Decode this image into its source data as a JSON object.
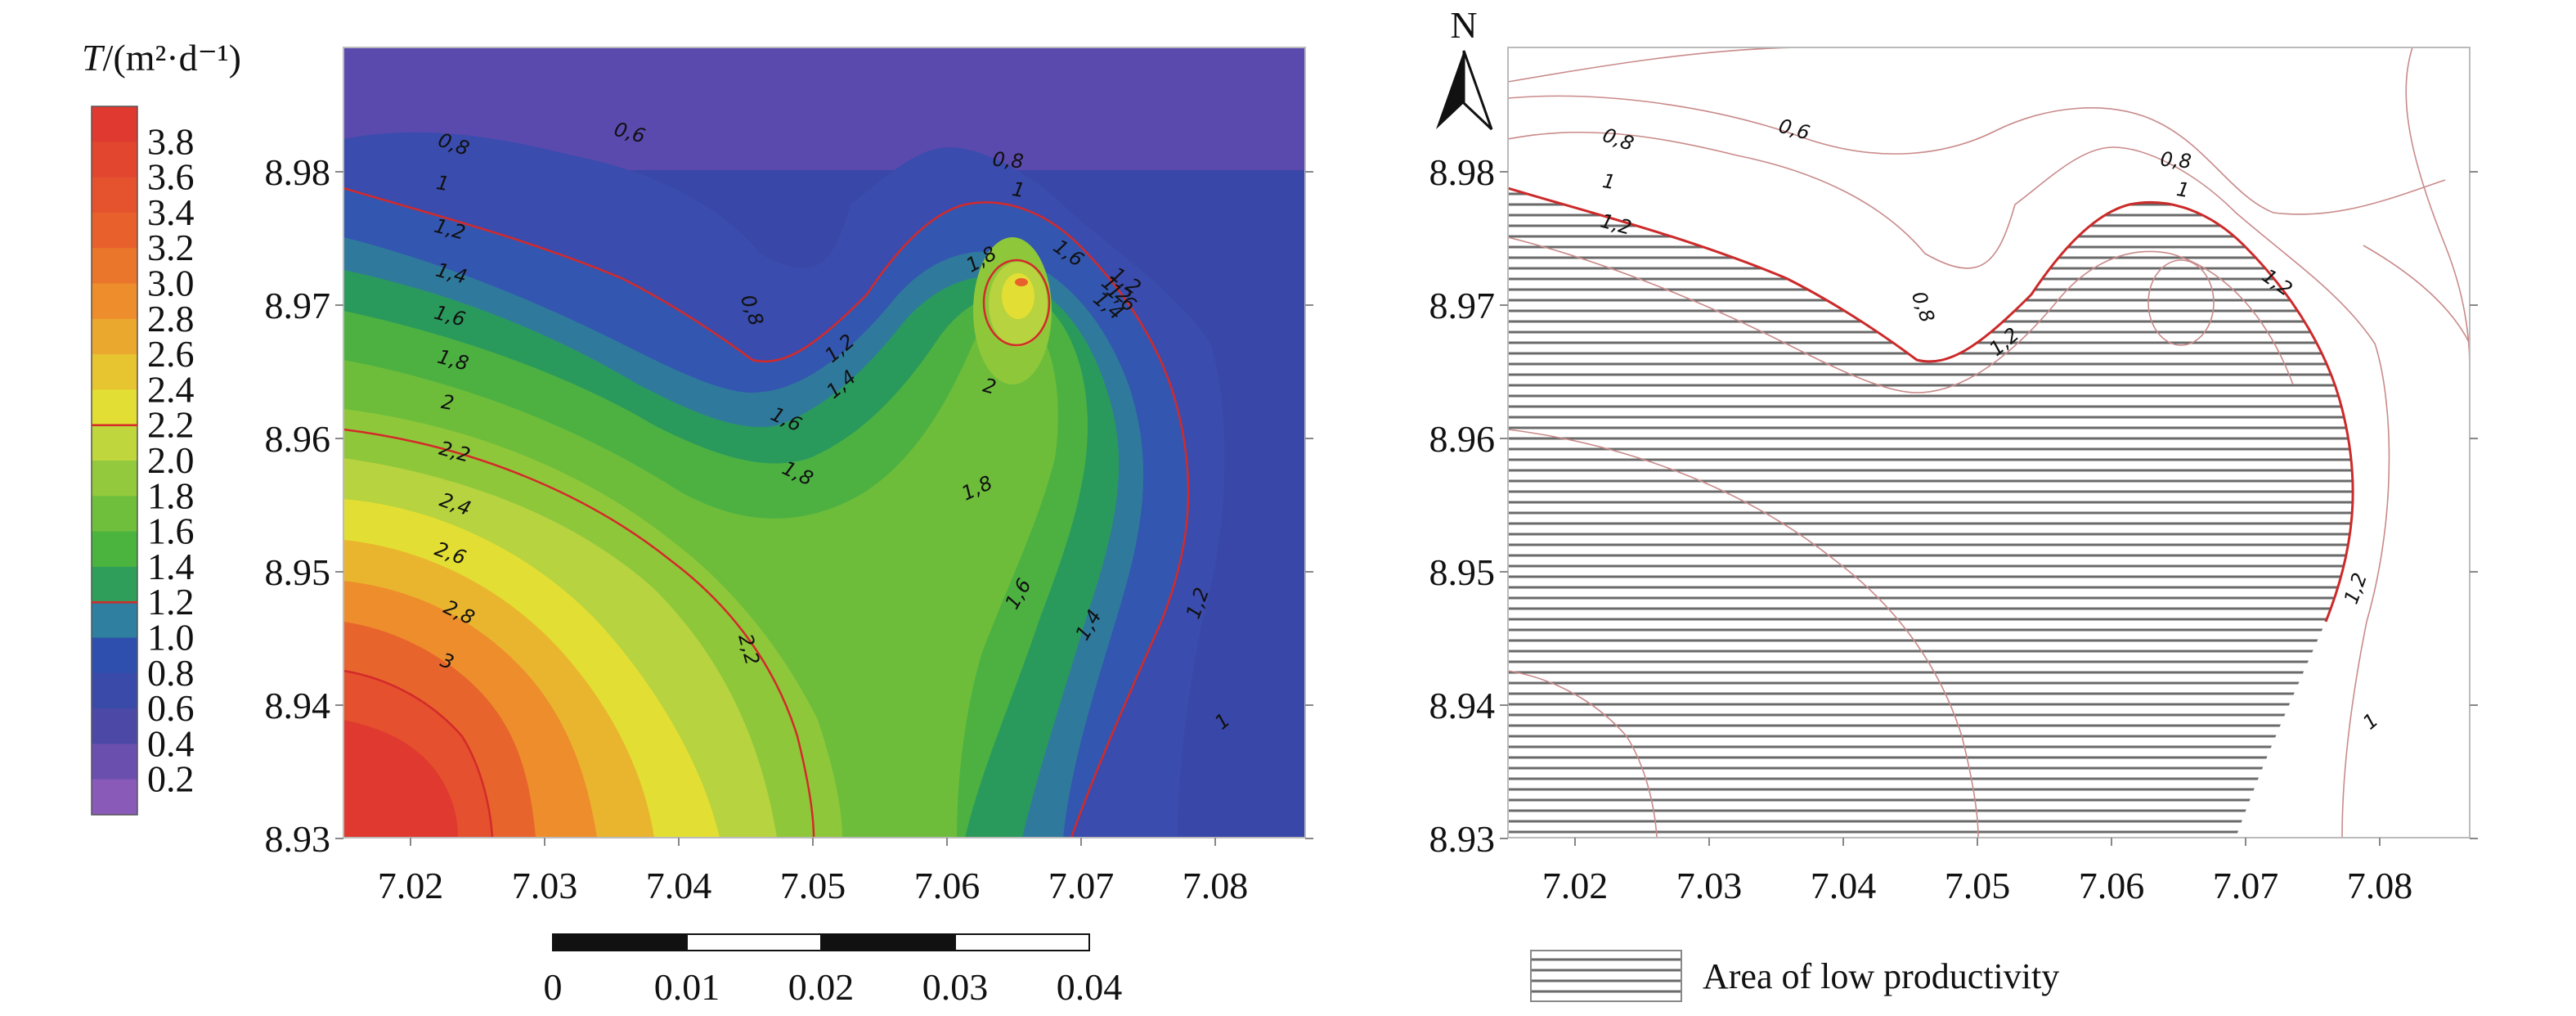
{
  "colorbar": {
    "title_T": "T",
    "title_units": "/(m²·d⁻¹)",
    "ticks": [
      "3.8",
      "3.6",
      "3.4",
      "3.2",
      "3.0",
      "2.8",
      "2.6",
      "2.4",
      "2.2",
      "2.0",
      "1.8",
      "1.6",
      "1.4",
      "1.2",
      "1.0",
      "0.8",
      "0.6",
      "0.4",
      "0.2"
    ],
    "colors": [
      "#e03a30",
      "#e2462f",
      "#e5522e",
      "#e8612d",
      "#ea762c",
      "#ed8d2c",
      "#eaa82e",
      "#e6c530",
      "#e2de33",
      "#bfd63d",
      "#93c93c",
      "#6fbf3c",
      "#4ab43f",
      "#2f9e5a",
      "#2f7fa0",
      "#2f4fae",
      "#3a4aa8",
      "#4c48a6",
      "#6a4fae",
      "#8a5ab8"
    ]
  },
  "axes": {
    "x_ticks": [
      "7.02",
      "7.03",
      "7.04",
      "7.05",
      "7.06",
      "7.07",
      "7.08"
    ],
    "y_ticks": [
      "8.98",
      "8.97",
      "8.96",
      "8.95",
      "8.94",
      "8.93"
    ]
  },
  "scalebar": {
    "labels": [
      "0",
      "0.01",
      "0.02",
      "0.03",
      "0.04"
    ]
  },
  "north": {
    "label": "N"
  },
  "legend": {
    "low_productivity": "Area of low productivity"
  },
  "contour_labels_left": [
    "0,8",
    "0,6",
    "0,8",
    "1",
    "1",
    "1,2",
    "1,4",
    "1,6",
    "1,8",
    "2",
    "2,2",
    "2,4",
    "2,6",
    "2,8",
    "3",
    "0,8",
    "1,2",
    "1,4",
    "1,6",
    "1,8",
    "2",
    "1,8",
    "1,6",
    "1,4",
    "1,2",
    "1,8",
    "1,6",
    "1,2",
    "2,2",
    "1,6",
    "1,4",
    "1,2",
    "1"
  ],
  "contour_labels_right": [
    "0,8",
    "0,6",
    "1",
    "1,2",
    "0,8",
    "0,8",
    "1",
    "1,2",
    "1,2",
    "1,2",
    "1"
  ]
}
